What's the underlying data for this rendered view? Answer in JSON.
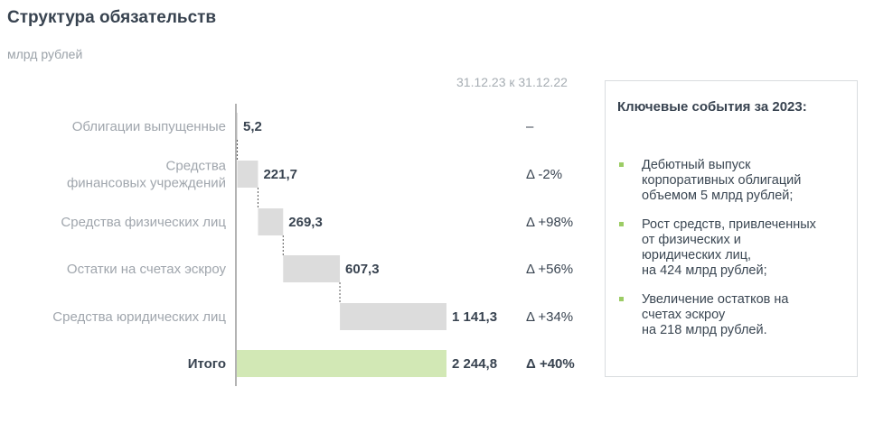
{
  "header": {
    "title": "Структура обязательств",
    "subtitle": "млрд рублей",
    "period": "31.12.23 к 31.12.22"
  },
  "chart_data": {
    "type": "bar",
    "subtype": "waterfall",
    "categories": [
      [
        "Облигации выпущенные"
      ],
      [
        "Средства",
        "финансовых учреждений"
      ],
      [
        "Средства физических лиц"
      ],
      [
        "Остатки на счетах эскроу"
      ],
      [
        "Средства юридических лиц"
      ],
      [
        "Итого"
      ]
    ],
    "values": [
      5.2,
      221.7,
      269.3,
      607.3,
      1141.3,
      2244.8
    ],
    "value_labels": [
      "5,2",
      "221,7",
      "269,3",
      "607,3",
      "1 141,3",
      "2 244,8"
    ],
    "deltas": [
      "–",
      "Δ -2%",
      "Δ +98%",
      "Δ +56%",
      "Δ +34%",
      "Δ +40%"
    ],
    "total_index": 5,
    "colors": {
      "bar": "#dcdcdc",
      "total": "#d2e8b5",
      "axis": "#9a9a9a",
      "connector": "#555555"
    }
  },
  "panel": {
    "title": "Ключевые события за 2023:",
    "bullet_color": "#9ccc65",
    "items": [
      [
        "Дебютный выпуск",
        "корпоративных облигаций",
        "объемом 5 млрд рублей;"
      ],
      [
        "Рост средств, привлеченных",
        "от физических и",
        "юридических лиц,",
        "на 424 млрд рублей;"
      ],
      [
        "Увеличение остатков на",
        "счетах эскроу",
        "на 218 млрд рублей."
      ]
    ]
  }
}
